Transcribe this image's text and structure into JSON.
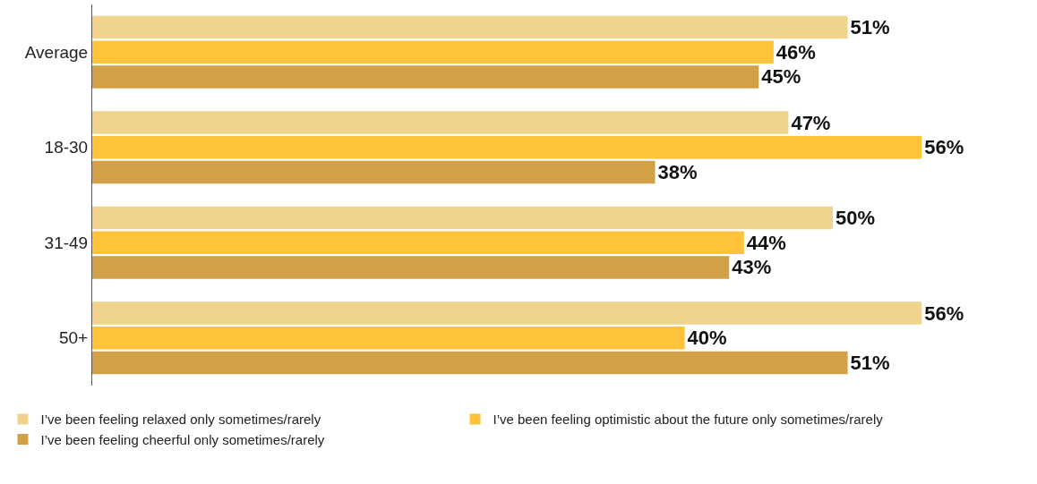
{
  "chart_data": {
    "type": "bar",
    "orientation": "horizontal",
    "categories": [
      "Average",
      "18-30",
      "31-49",
      "50+"
    ],
    "series": [
      {
        "name": "I’ve been feeling relaxed only sometimes/rarely",
        "color": "#f0d48e",
        "values": [
          51,
          47,
          50,
          56
        ],
        "value_labels": [
          "51%",
          "47%",
          "50%",
          "56%"
        ]
      },
      {
        "name": "I’ve been feeling optimistic about the future only sometimes/rarely",
        "color": "#fec23b",
        "values": [
          46,
          56,
          44,
          40
        ],
        "value_labels": [
          "46%",
          "56%",
          "44%",
          "40%"
        ]
      },
      {
        "name": "I’ve been feeling cheerful only sometimes/rarely",
        "color": "#d1a047",
        "values": [
          45,
          38,
          43,
          51
        ],
        "value_labels": [
          "45%",
          "38%",
          "43%",
          "51%"
        ]
      }
    ],
    "tick_labels": "y",
    "legend": "bottom"
  }
}
